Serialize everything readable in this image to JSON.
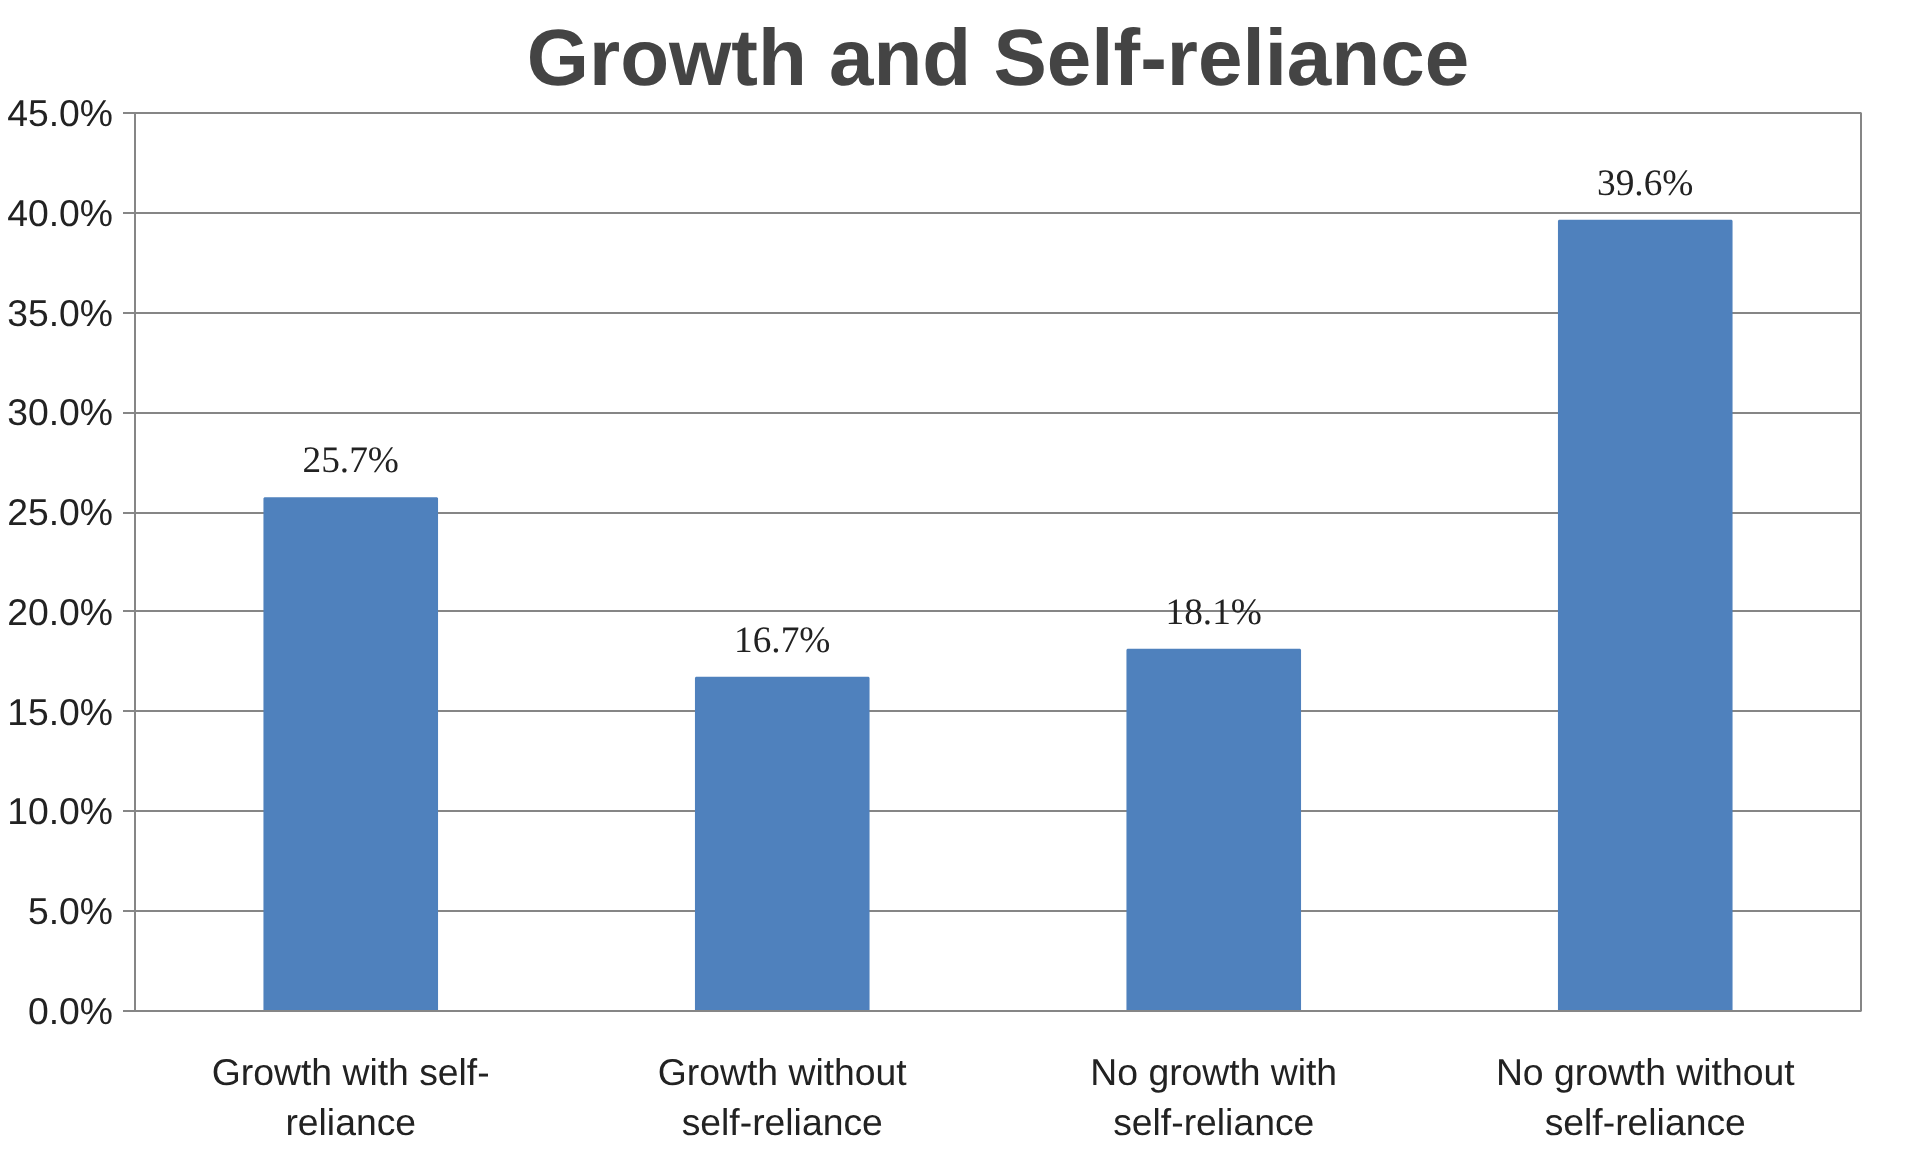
{
  "chart_data": {
    "type": "bar",
    "title": "Growth and Self-reliance",
    "categories": [
      "Growth with self-reliance",
      "Growth without self-reliance",
      "No growth with self-reliance",
      "No growth without self-reliance"
    ],
    "values": [
      25.7,
      16.7,
      18.1,
      39.6
    ],
    "value_labels": [
      "25.7%",
      "16.7%",
      "18.1%",
      "39.6%"
    ],
    "color": "#4f81bd",
    "ylim": [
      0,
      45
    ],
    "yticks": [
      {
        "value": 0,
        "label": "0.0%"
      },
      {
        "value": 5,
        "label": "5.0%"
      },
      {
        "value": 10,
        "label": "10.0%"
      },
      {
        "value": 15,
        "label": "15.0%"
      },
      {
        "value": 20,
        "label": "20.0%"
      },
      {
        "value": 25,
        "label": "25.0%"
      },
      {
        "value": 30,
        "label": "30.0%"
      },
      {
        "value": 35,
        "label": "35.0%"
      },
      {
        "value": 40,
        "label": "40.0%"
      },
      {
        "value": 45,
        "label": "45.0%"
      }
    ],
    "grid": "y"
  }
}
